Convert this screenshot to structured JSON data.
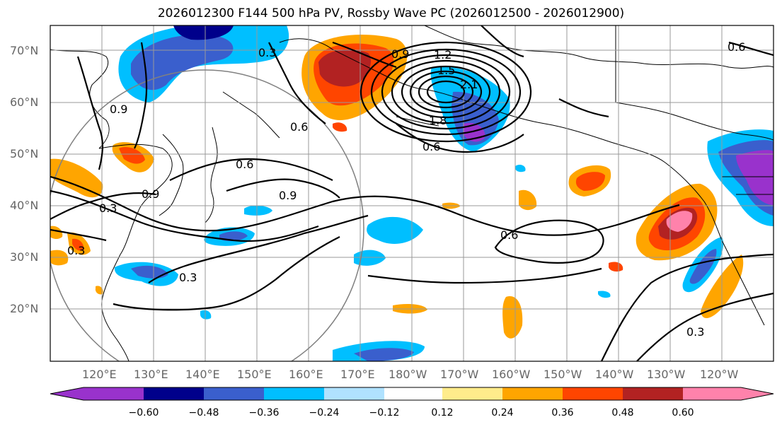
{
  "title": "2026012300 F144 500 hPa PV, Rossby Wave PC (2026012500 - 2026012900)",
  "lat_labels": [
    "70°N",
    "60°N",
    "50°N",
    "40°N",
    "30°N",
    "20°N"
  ],
  "lon_labels": [
    "120°E",
    "130°E",
    "140°E",
    "150°E",
    "160°E",
    "170°E",
    "180°W",
    "170°W",
    "160°W",
    "150°W",
    "140°W",
    "130°W",
    "120°W"
  ],
  "contour_labels": [
    "0.3",
    "0.6",
    "0.6",
    "0.6",
    "0.9",
    "0.9",
    "0.9",
    "0.9",
    "1.2",
    "1.5",
    "1.8",
    "2.1",
    "0.3",
    "0.3",
    "0.6",
    "0.3",
    "0.6",
    "0.3"
  ],
  "colorbar": {
    "ticks": [
      "−0.60",
      "−0.48",
      "−0.36",
      "−0.24",
      "−0.12",
      "0.12",
      "0.24",
      "0.36",
      "0.48",
      "0.60"
    ],
    "colors": [
      "#9932cc",
      "#00008b",
      "#3a5fcd",
      "#00bfff",
      "#b0e2ff",
      "#ffffff",
      "#ffec8b",
      "#ffa500",
      "#ff4500",
      "#b22222",
      "#ff82ab"
    ]
  }
}
